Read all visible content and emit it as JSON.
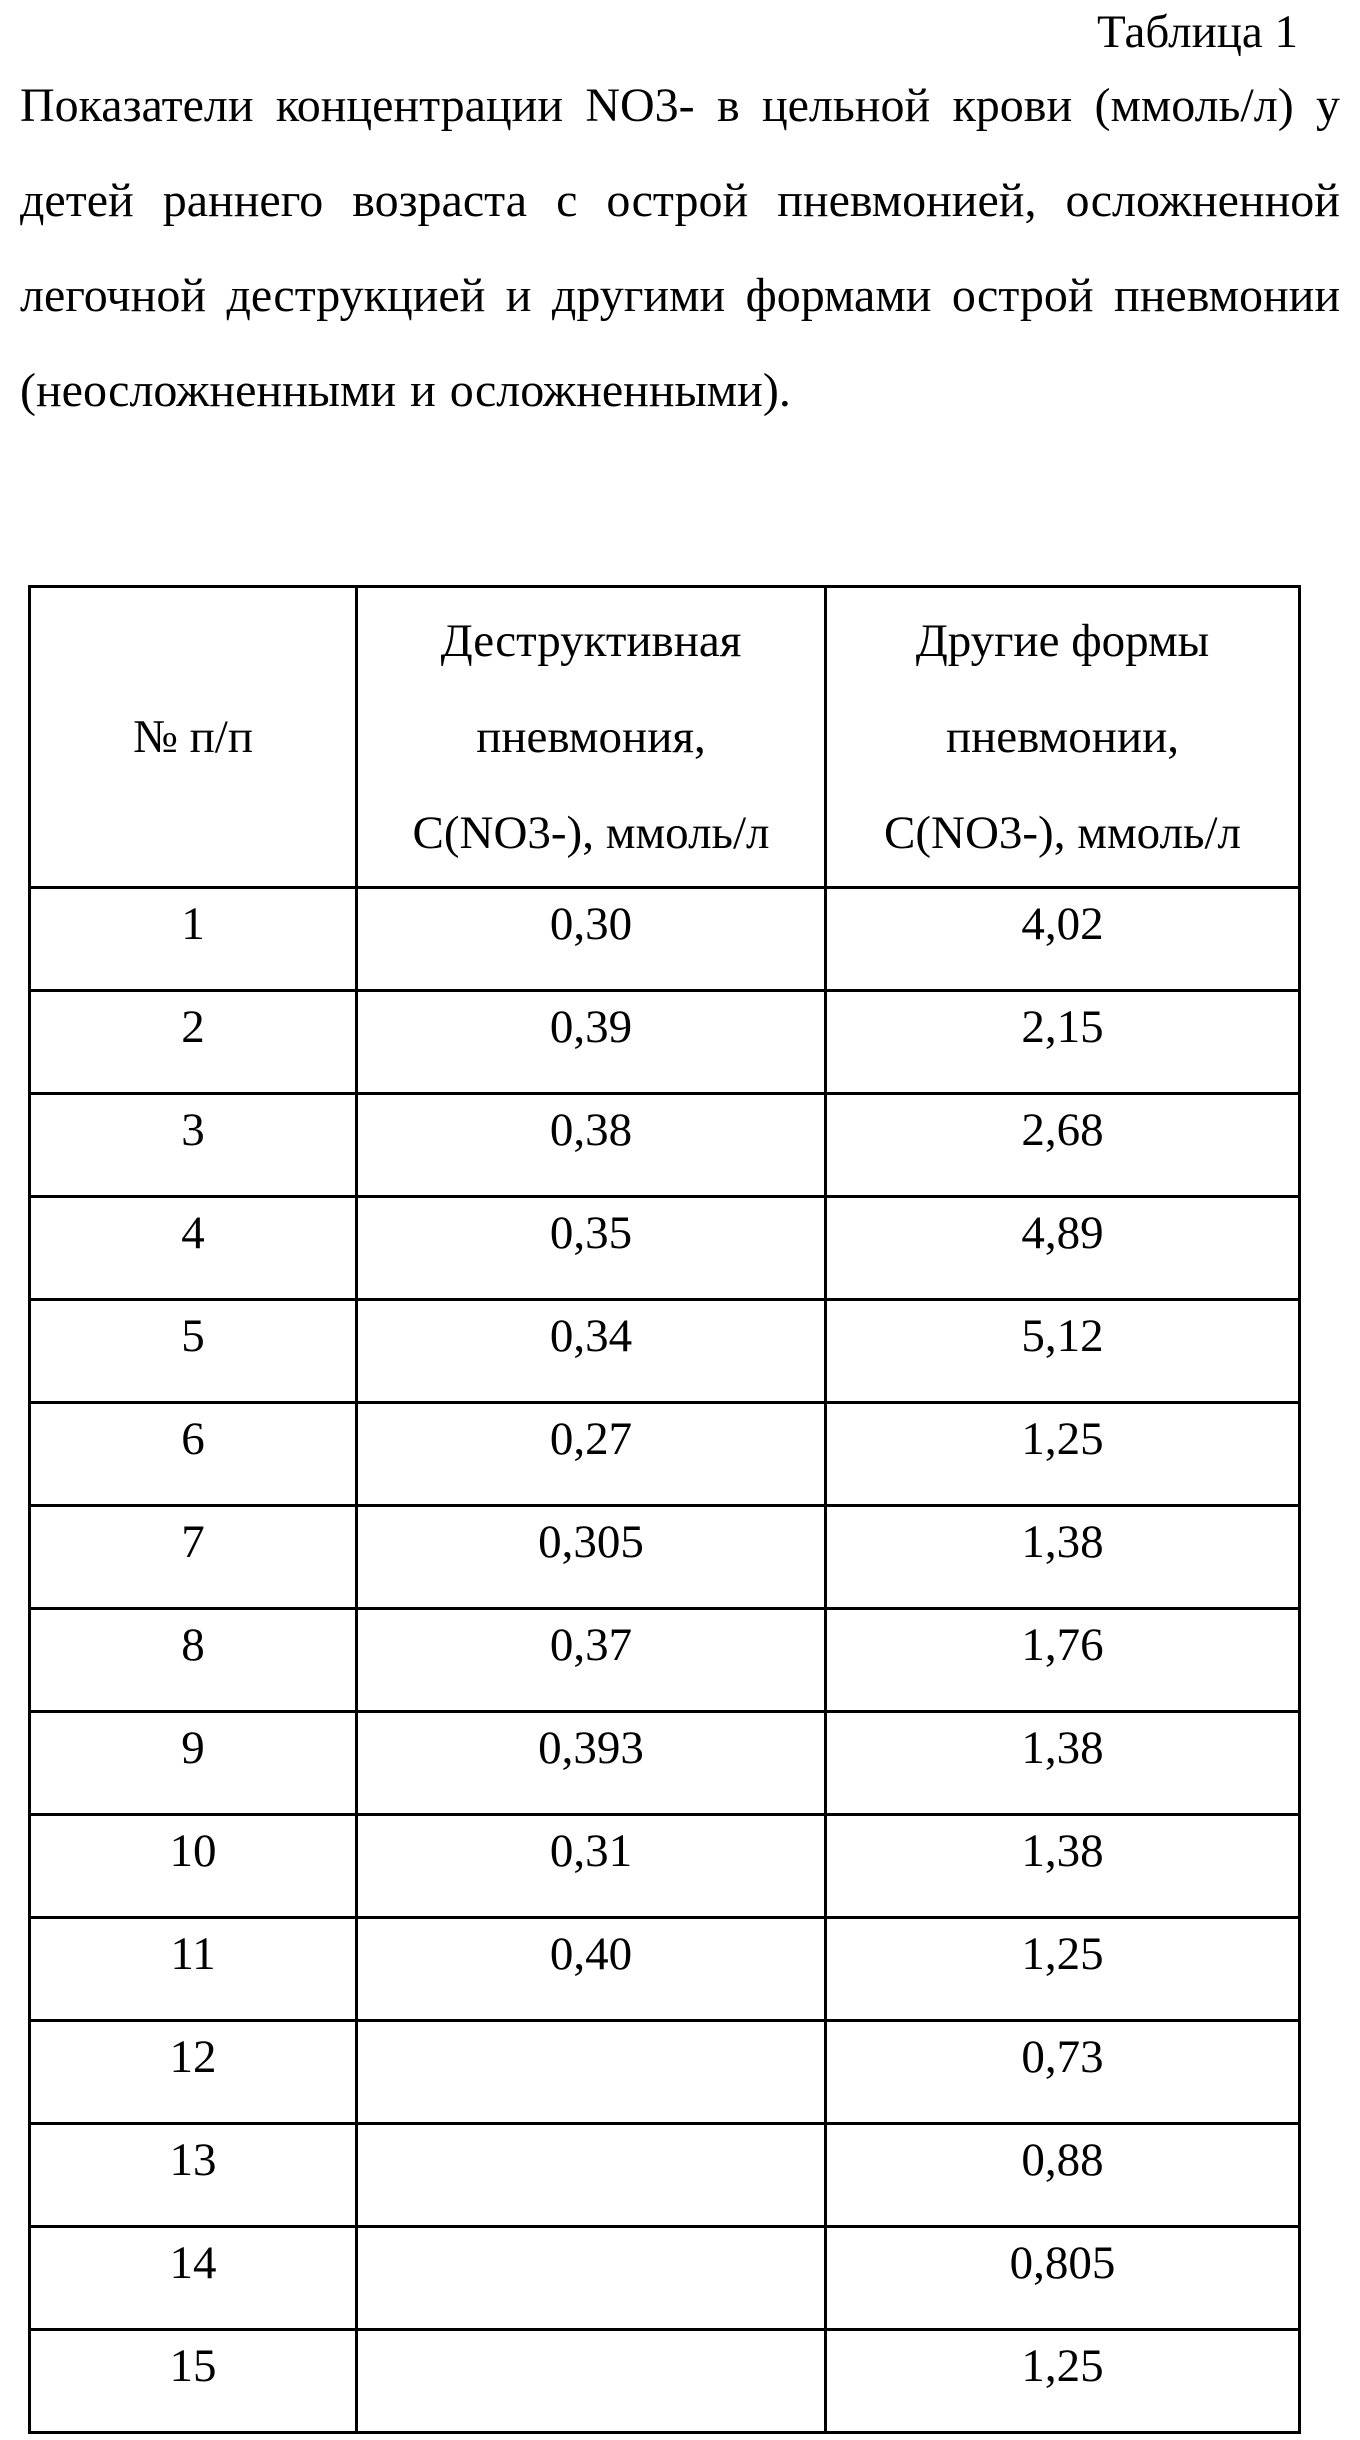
{
  "caption": "Таблица 1",
  "title": "Показатели концентрации NO3- в цельной крови (ммоль/л) у детей раннего возраста с острой пневмонией, осложненной легочной деструкцией и другими формами острой пневмонии (неосложненными и осложненными).",
  "table": {
    "header": [
      [
        "№ п/п"
      ],
      [
        "Деструктивная",
        "пневмония,",
        "C(NO3-), ммоль/л"
      ],
      [
        "Другие формы",
        "пневмонии,",
        "C(NO3-), ммоль/л"
      ]
    ],
    "rows": [
      [
        "1",
        "0,30",
        "4,02"
      ],
      [
        "2",
        "0,39",
        "2,15"
      ],
      [
        "3",
        "0,38",
        "2,68"
      ],
      [
        "4",
        "0,35",
        "4,89"
      ],
      [
        "5",
        "0,34",
        "5,12"
      ],
      [
        "6",
        "0,27",
        "1,25"
      ],
      [
        "7",
        "0,305",
        "1,38"
      ],
      [
        "8",
        "0,37",
        "1,76"
      ],
      [
        "9",
        "0,393",
        "1,38"
      ],
      [
        "10",
        "0,31",
        "1,38"
      ],
      [
        "11",
        "0,40",
        "1,25"
      ],
      [
        "12",
        null,
        "0,73"
      ],
      [
        "13",
        null,
        "0,88"
      ],
      [
        "14",
        null,
        "0,805"
      ],
      [
        "15",
        null,
        "1,25"
      ]
    ]
  }
}
